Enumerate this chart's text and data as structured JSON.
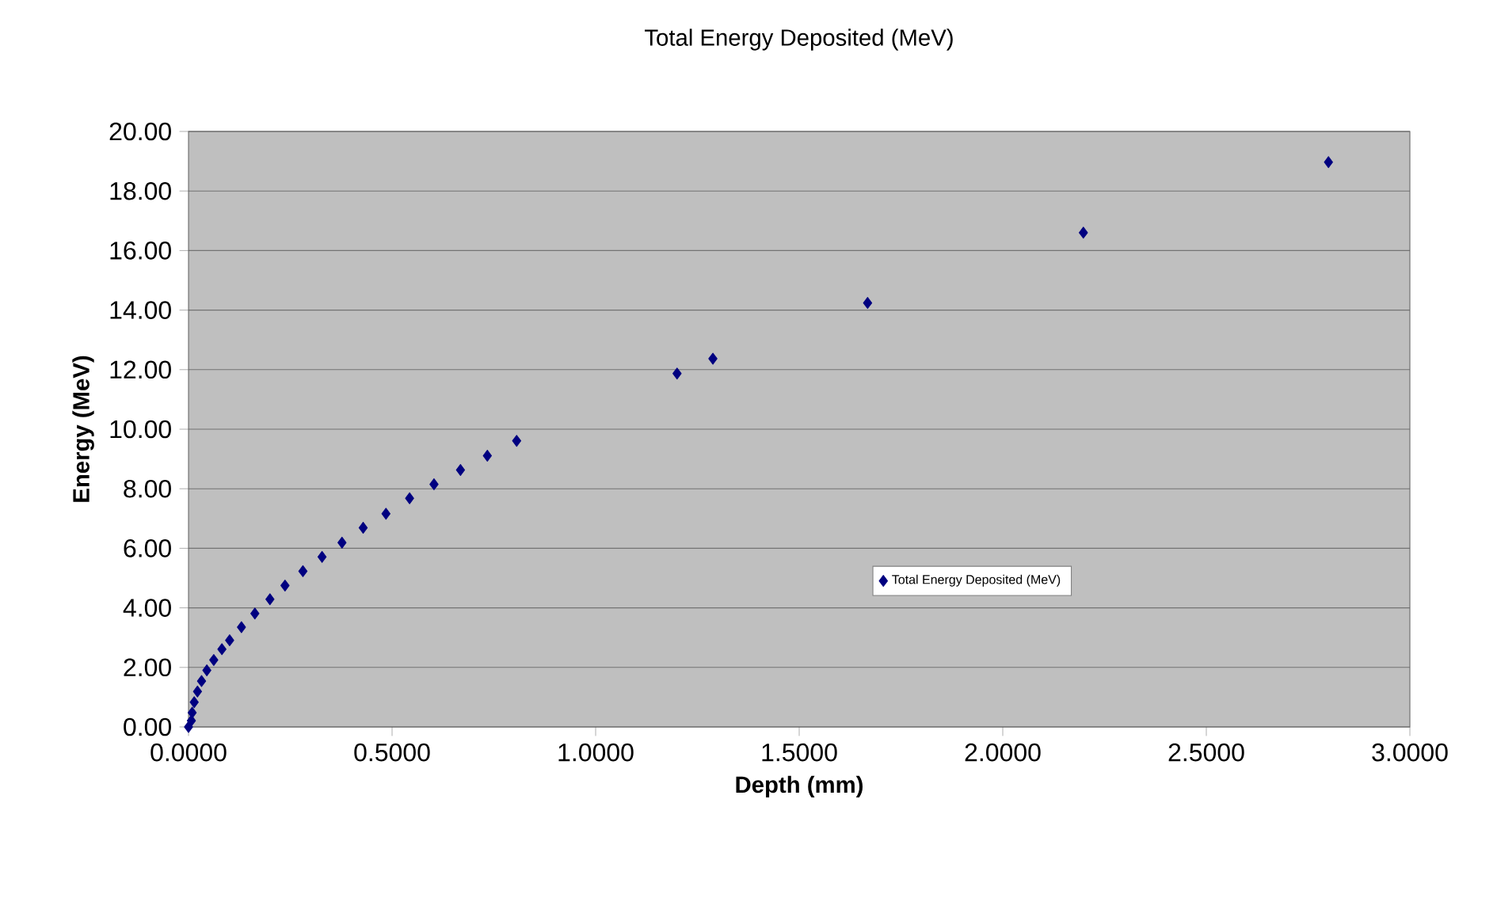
{
  "chart_data": {
    "type": "scatter",
    "title": "Total Energy Deposited (MeV)",
    "xlabel": "Depth (mm)",
    "ylabel": "Energy (MeV)",
    "series": [
      {
        "name": "Total Energy Deposited (MeV)",
        "color": "#000080",
        "x": [
          0.0,
          0.007,
          0.009,
          0.014,
          0.022,
          0.032,
          0.045,
          0.062,
          0.082,
          0.101,
          0.13,
          0.163,
          0.2,
          0.237,
          0.281,
          0.328,
          0.377,
          0.429,
          0.485,
          0.543,
          0.603,
          0.668,
          0.734,
          0.806,
          1.2,
          1.288,
          1.668,
          2.198,
          2.8
        ],
        "values": [
          0.0,
          0.21,
          0.48,
          0.83,
          1.19,
          1.54,
          1.9,
          2.25,
          2.61,
          2.91,
          3.35,
          3.81,
          4.29,
          4.75,
          5.23,
          5.71,
          6.19,
          6.69,
          7.16,
          7.68,
          8.15,
          8.63,
          9.11,
          9.61,
          11.87,
          12.37,
          14.24,
          16.6,
          18.97
        ]
      }
    ],
    "xlim": [
      0,
      3
    ],
    "ylim": [
      0,
      20
    ],
    "xticks": [
      {
        "value": 0,
        "label": "0.0000"
      },
      {
        "value": 0.5,
        "label": "0.5000"
      },
      {
        "value": 1,
        "label": "1.0000"
      },
      {
        "value": 1.5,
        "label": "1.5000"
      },
      {
        "value": 2,
        "label": "2.0000"
      },
      {
        "value": 2.5,
        "label": "2.5000"
      },
      {
        "value": 3,
        "label": "3.0000"
      }
    ],
    "yticks": [
      {
        "value": 0,
        "label": "0.00"
      },
      {
        "value": 2,
        "label": "2.00"
      },
      {
        "value": 4,
        "label": "4.00"
      },
      {
        "value": 6,
        "label": "6.00"
      },
      {
        "value": 8,
        "label": "8.00"
      },
      {
        "value": 10,
        "label": "10.00"
      },
      {
        "value": 12,
        "label": "12.00"
      },
      {
        "value": 14,
        "label": "14.00"
      },
      {
        "value": 16,
        "label": "16.00"
      },
      {
        "value": 18,
        "label": "18.00"
      },
      {
        "value": 20,
        "label": "20.00"
      }
    ],
    "grid": "y",
    "legend": "bottom right",
    "marker": "diamond"
  }
}
